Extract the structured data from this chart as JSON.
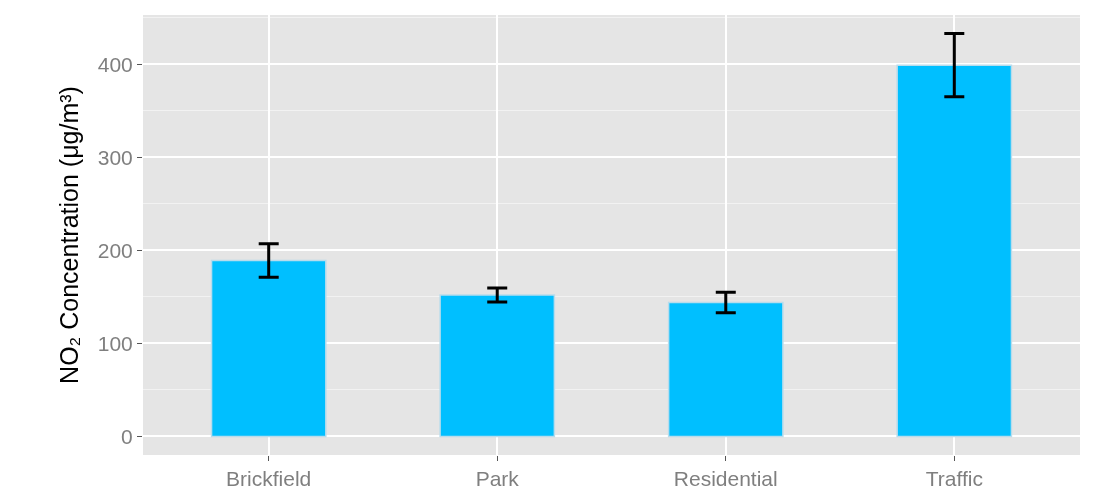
{
  "chart_data": {
    "type": "bar",
    "ylabel": "NO₂ Concentration (μg/m³)",
    "categories": [
      "Brickfield",
      "Park",
      "Residential",
      "Traffic"
    ],
    "values": [
      189,
      152,
      144,
      399
    ],
    "errors": [
      18,
      7.5,
      11,
      34
    ],
    "color": "#00bfff",
    "ylim": [
      -20,
      453
    ],
    "yticks": [
      0,
      100,
      200,
      300,
      400
    ],
    "grid": true,
    "legend": false
  }
}
